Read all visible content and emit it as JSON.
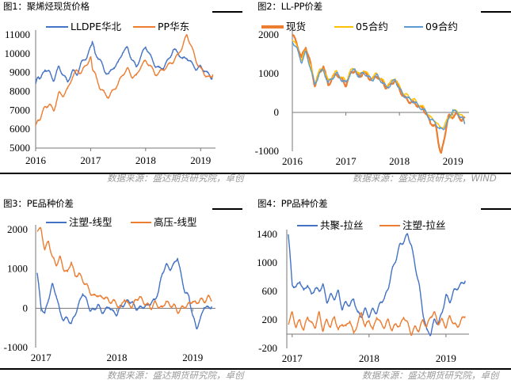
{
  "source_text_left": "数据来源：盛达期货研究院，卓创",
  "source_text_top_right": "数据来源：盛达期货研究院，WIND",
  "source_text_bottom_right": "数据来源：盛达期货研究院，卓创",
  "chart_data": [
    {
      "type": "line",
      "title": "图1：聚烯烃现货价格",
      "xlabel": "",
      "ylabel": "",
      "x_ticks": [
        "2016",
        "2017",
        "2018",
        "2019"
      ],
      "y_ticks": [
        "5000",
        "6000",
        "7000",
        "8000",
        "9000",
        "10000",
        "11000"
      ],
      "ylim": [
        5000,
        11000
      ],
      "legend_position": "top",
      "series": [
        {
          "name": "LLDPE华北",
          "color": "#4472C4",
          "x": [
            2016.0,
            2016.05,
            2016.1,
            2016.17,
            2016.25,
            2016.33,
            2016.42,
            2016.5,
            2016.58,
            2016.67,
            2016.75,
            2016.83,
            2016.92,
            2017.0,
            2017.03,
            2017.08,
            2017.17,
            2017.25,
            2017.33,
            2017.42,
            2017.5,
            2017.58,
            2017.67,
            2017.75,
            2017.83,
            2017.92,
            2018.0,
            2018.08,
            2018.17,
            2018.25,
            2018.33,
            2018.42,
            2018.5,
            2018.58,
            2018.67,
            2018.75,
            2018.83,
            2018.92,
            2019.0,
            2019.08,
            2019.17,
            2019.22
          ],
          "values": [
            8400,
            8800,
            8700,
            9200,
            9000,
            8600,
            9300,
            8900,
            8500,
            9100,
            8900,
            9500,
            9800,
            10300,
            10700,
            10000,
            9700,
            9100,
            8900,
            9300,
            9500,
            10100,
            10300,
            9700,
            9300,
            9900,
            10400,
            9900,
            9400,
            9200,
            9300,
            9700,
            10200,
            10100,
            9700,
            9800,
            9500,
            9200,
            9300,
            9100,
            8800,
            8700
          ]
        },
        {
          "name": "PP华东",
          "color": "#ED7D31",
          "x": [
            2016.0,
            2016.05,
            2016.1,
            2016.17,
            2016.25,
            2016.33,
            2016.42,
            2016.5,
            2016.58,
            2016.67,
            2016.75,
            2016.83,
            2016.92,
            2017.0,
            2017.03,
            2017.08,
            2017.17,
            2017.25,
            2017.33,
            2017.42,
            2017.5,
            2017.58,
            2017.67,
            2017.75,
            2017.83,
            2017.92,
            2018.0,
            2018.08,
            2018.17,
            2018.25,
            2018.33,
            2018.42,
            2018.5,
            2018.58,
            2018.67,
            2018.75,
            2018.83,
            2018.92,
            2019.0,
            2019.08,
            2019.17,
            2019.22
          ],
          "values": [
            6300,
            6400,
            6700,
            7200,
            7300,
            7000,
            7900,
            7800,
            8100,
            8800,
            9100,
            9000,
            9400,
            9800,
            9300,
            8900,
            8200,
            7900,
            7700,
            8100,
            8400,
            8900,
            9200,
            8800,
            8800,
            9400,
            9600,
            9400,
            8900,
            9000,
            9200,
            9400,
            9600,
            9900,
            10400,
            11000,
            10400,
            9600,
            9200,
            8900,
            8700,
            8900
          ]
        }
      ]
    },
    {
      "type": "line",
      "title": "图2：LL-PP价差",
      "xlabel": "",
      "ylabel": "",
      "x_ticks": [
        "2016",
        "2017",
        "2018",
        "2019"
      ],
      "y_ticks": [
        "-1000",
        "0",
        "1000",
        "2000"
      ],
      "ylim": [
        -1000,
        2000
      ],
      "legend_position": "top",
      "series": [
        {
          "name": "现货",
          "color": "#ED7D31",
          "x": [
            2016.0,
            2016.08,
            2016.17,
            2016.25,
            2016.33,
            2016.42,
            2016.5,
            2016.58,
            2016.67,
            2016.75,
            2016.83,
            2016.92,
            2017.0,
            2017.08,
            2017.17,
            2017.25,
            2017.33,
            2017.42,
            2017.5,
            2017.58,
            2017.67,
            2017.75,
            2017.83,
            2017.92,
            2018.0,
            2018.08,
            2018.17,
            2018.25,
            2018.33,
            2018.42,
            2018.5,
            2018.58,
            2018.67,
            2018.72,
            2018.78,
            2018.83,
            2018.92,
            2019.0,
            2019.08,
            2019.17,
            2019.22
          ],
          "values": [
            2000,
            1800,
            1400,
            1700,
            1300,
            700,
            1000,
            1200,
            700,
            900,
            1000,
            850,
            700,
            1000,
            1100,
            900,
            1050,
            900,
            850,
            950,
            800,
            650,
            700,
            850,
            600,
            400,
            300,
            250,
            200,
            100,
            0,
            -300,
            -300,
            -700,
            -1100,
            -700,
            -100,
            -100,
            -50,
            -200,
            -150
          ]
        },
        {
          "name": "05合约",
          "color": "#FFC000",
          "x": [
            2016.0,
            2016.08,
            2016.17,
            2016.25,
            2016.33,
            2016.42,
            2016.5,
            2016.58,
            2016.67,
            2016.75,
            2016.83,
            2016.92,
            2017.0,
            2017.08,
            2017.17,
            2017.25,
            2017.33,
            2017.42,
            2017.5,
            2017.58,
            2017.67,
            2017.75,
            2017.83,
            2017.92,
            2018.0,
            2018.08,
            2018.17,
            2018.25,
            2018.33,
            2018.42,
            2018.5,
            2018.58,
            2018.67,
            2018.75,
            2018.83,
            2018.92,
            2019.0,
            2019.08,
            2019.17,
            2019.22
          ],
          "values": [
            1900,
            1700,
            1350,
            1600,
            1250,
            750,
            1050,
            1150,
            800,
            950,
            1050,
            900,
            800,
            1050,
            1150,
            950,
            1100,
            950,
            900,
            1000,
            850,
            700,
            750,
            900,
            650,
            500,
            400,
            350,
            250,
            150,
            50,
            -150,
            -200,
            -400,
            -350,
            -150,
            0,
            50,
            -100,
            -250
          ]
        },
        {
          "name": "09合约",
          "color": "#5B9BD5",
          "x": [
            2016.0,
            2016.08,
            2016.17,
            2016.25,
            2016.33,
            2016.42,
            2016.5,
            2016.58,
            2016.67,
            2016.75,
            2016.83,
            2016.92,
            2017.0,
            2017.08,
            2017.17,
            2017.25,
            2017.33,
            2017.42,
            2017.5,
            2017.58,
            2017.67,
            2017.75,
            2017.83,
            2017.92,
            2018.0,
            2018.08,
            2018.17,
            2018.25,
            2018.33,
            2018.42,
            2018.5,
            2018.58,
            2018.67,
            2018.75,
            2018.83,
            2018.92,
            2019.0,
            2019.08,
            2019.17,
            2019.22
          ],
          "values": [
            1850,
            1650,
            1300,
            1550,
            1200,
            700,
            1000,
            1100,
            750,
            900,
            1000,
            850,
            750,
            1000,
            1100,
            900,
            1050,
            900,
            850,
            950,
            800,
            650,
            700,
            850,
            600,
            450,
            350,
            300,
            200,
            100,
            0,
            -200,
            -250,
            -450,
            -400,
            -200,
            100,
            -50,
            -100,
            -300
          ]
        }
      ]
    },
    {
      "type": "line",
      "title": "图3：PE品种价差",
      "xlabel": "",
      "ylabel": "",
      "x_ticks": [
        "2017",
        "2018",
        "2019"
      ],
      "y_ticks": [
        "-1000",
        "0",
        "1000",
        "2000"
      ],
      "ylim": [
        -1000,
        2000
      ],
      "legend_position": "top",
      "series": [
        {
          "name": "注塑-线型",
          "color": "#4472C4",
          "x": [
            2016.95,
            2017.0,
            2017.05,
            2017.1,
            2017.15,
            2017.2,
            2017.25,
            2017.3,
            2017.35,
            2017.4,
            2017.45,
            2017.5,
            2017.55,
            2017.6,
            2017.65,
            2017.7,
            2017.75,
            2017.8,
            2017.85,
            2017.9,
            2017.95,
            2018.0,
            2018.05,
            2018.1,
            2018.15,
            2018.2,
            2018.25,
            2018.3,
            2018.35,
            2018.4,
            2018.45,
            2018.5,
            2018.55,
            2018.6,
            2018.65,
            2018.7,
            2018.75,
            2018.8,
            2018.85,
            2018.9,
            2018.95,
            2019.0,
            2019.05,
            2019.1,
            2019.15,
            2019.2,
            2019.25
          ],
          "values": [
            900,
            50,
            -150,
            250,
            600,
            350,
            -100,
            -300,
            -250,
            -400,
            -150,
            100,
            400,
            200,
            -50,
            -50,
            100,
            -100,
            -50,
            50,
            -100,
            -150,
            50,
            100,
            200,
            150,
            0,
            0,
            50,
            50,
            150,
            200,
            450,
            900,
            1100,
            1000,
            1100,
            1300,
            800,
            400,
            300,
            -200,
            -500,
            -300,
            50,
            0,
            50
          ]
        },
        {
          "name": "高压-线型",
          "color": "#ED7D31",
          "x": [
            2016.95,
            2017.0,
            2017.05,
            2017.1,
            2017.15,
            2017.2,
            2017.25,
            2017.3,
            2017.35,
            2017.4,
            2017.45,
            2017.5,
            2017.55,
            2017.6,
            2017.65,
            2017.7,
            2017.75,
            2017.8,
            2017.85,
            2017.9,
            2017.95,
            2018.0,
            2018.05,
            2018.1,
            2018.15,
            2018.2,
            2018.25,
            2018.3,
            2018.35,
            2018.4,
            2018.45,
            2018.5,
            2018.55,
            2018.6,
            2018.65,
            2018.7,
            2018.75,
            2018.8,
            2018.85,
            2018.9,
            2018.95,
            2019.0,
            2019.05,
            2019.1,
            2019.15,
            2019.2,
            2019.25
          ],
          "values": [
            2000,
            2000,
            1500,
            1700,
            1300,
            1100,
            1300,
            1000,
            900,
            1200,
            800,
            900,
            700,
            600,
            400,
            300,
            350,
            250,
            300,
            150,
            200,
            100,
            0,
            250,
            100,
            50,
            200,
            300,
            150,
            100,
            0,
            150,
            50,
            0,
            200,
            50,
            100,
            -100,
            0,
            50,
            100,
            200,
            100,
            250,
            150,
            300,
            200
          ]
        }
      ]
    },
    {
      "type": "line",
      "title": "图4：PP品种价差",
      "xlabel": "",
      "ylabel": "",
      "x_ticks": [
        "2017",
        "2018",
        "2019"
      ],
      "y_ticks": [
        "-200",
        "200",
        "600",
        "1000",
        "1400"
      ],
      "ylim": [
        -200,
        1400
      ],
      "legend_position": "top",
      "series": [
        {
          "name": "共聚-拉丝",
          "color": "#4472C4",
          "x": [
            2016.95,
            2017.0,
            2017.05,
            2017.1,
            2017.15,
            2017.2,
            2017.25,
            2017.3,
            2017.35,
            2017.4,
            2017.45,
            2017.5,
            2017.55,
            2017.6,
            2017.65,
            2017.7,
            2017.75,
            2017.8,
            2017.85,
            2017.9,
            2017.95,
            2018.0,
            2018.05,
            2018.1,
            2018.15,
            2018.2,
            2018.25,
            2018.3,
            2018.35,
            2018.4,
            2018.45,
            2018.5,
            2018.55,
            2018.6,
            2018.65,
            2018.7,
            2018.75,
            2018.8,
            2018.85,
            2018.9,
            2018.95,
            2019.0,
            2019.05,
            2019.1,
            2019.15,
            2019.2,
            2019.25
          ],
          "values": [
            1400,
            700,
            650,
            750,
            600,
            700,
            550,
            650,
            600,
            700,
            450,
            550,
            500,
            600,
            350,
            450,
            400,
            500,
            300,
            250,
            350,
            250,
            350,
            300,
            450,
            500,
            650,
            900,
            1050,
            1250,
            1300,
            1400,
            1250,
            950,
            700,
            300,
            50,
            0,
            200,
            150,
            300,
            550,
            450,
            600,
            650,
            700,
            750
          ]
        },
        {
          "name": "注塑-拉丝",
          "color": "#ED7D31",
          "x": [
            2016.95,
            2017.0,
            2017.05,
            2017.1,
            2017.15,
            2017.2,
            2017.25,
            2017.3,
            2017.35,
            2017.4,
            2017.45,
            2017.5,
            2017.55,
            2017.6,
            2017.65,
            2017.7,
            2017.75,
            2017.8,
            2017.85,
            2017.9,
            2017.95,
            2018.0,
            2018.05,
            2018.1,
            2018.15,
            2018.2,
            2018.25,
            2018.3,
            2018.35,
            2018.4,
            2018.45,
            2018.5,
            2018.55,
            2018.6,
            2018.65,
            2018.7,
            2018.75,
            2018.8,
            2018.85,
            2018.9,
            2018.95,
            2019.0,
            2019.05,
            2019.1,
            2019.15,
            2019.2,
            2019.25
          ],
          "values": [
            150,
            300,
            100,
            200,
            50,
            250,
            150,
            100,
            300,
            50,
            200,
            100,
            250,
            50,
            150,
            100,
            200,
            0,
            150,
            300,
            100,
            200,
            50,
            250,
            150,
            100,
            200,
            50,
            150,
            100,
            250,
            150,
            0,
            100,
            50,
            200,
            100,
            250,
            300,
            150,
            200,
            100,
            250,
            150,
            100,
            200,
            250
          ]
        }
      ]
    }
  ]
}
